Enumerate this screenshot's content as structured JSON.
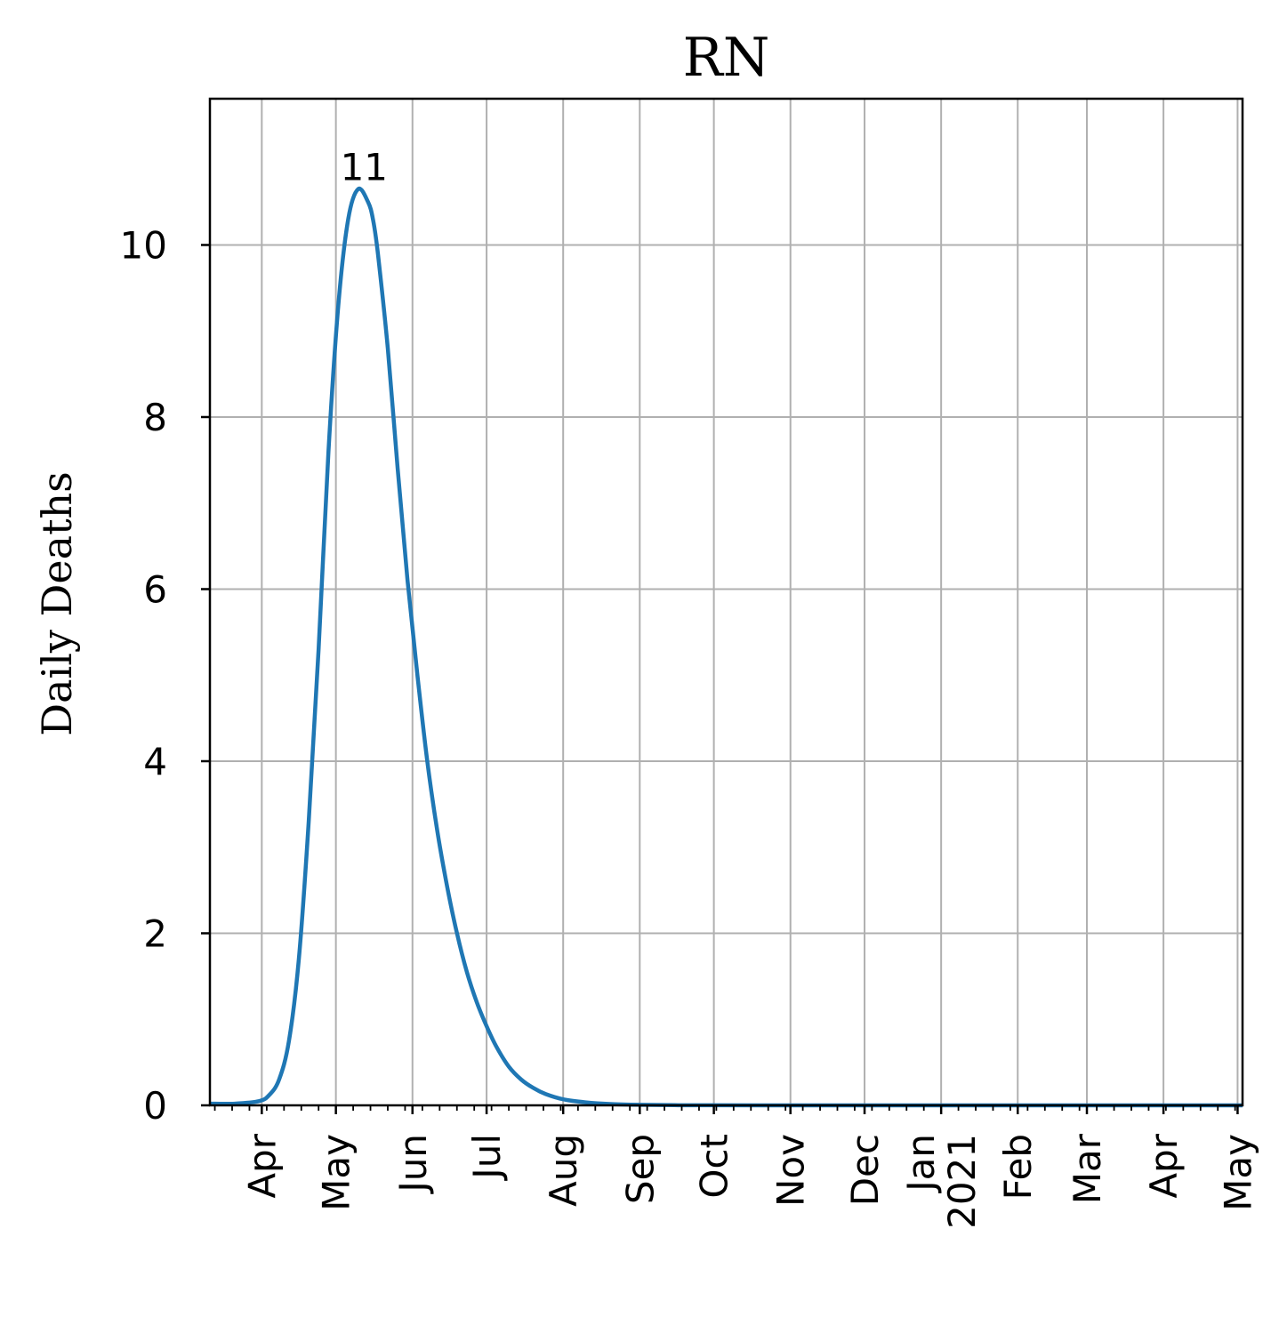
{
  "chart_data": {
    "type": "line",
    "title": "RN",
    "xlabel": "",
    "ylabel": "Daily Deaths",
    "ylim": [
      0,
      11.7
    ],
    "xlim": [
      "2020-03-11",
      "2021-05-03"
    ],
    "grid": true,
    "y_ticks": [
      0,
      2,
      4,
      6,
      8,
      10
    ],
    "x_ticks": [
      {
        "date": "2020-04-01",
        "label": "Apr"
      },
      {
        "date": "2020-05-01",
        "label": "May"
      },
      {
        "date": "2020-06-01",
        "label": "Jun"
      },
      {
        "date": "2020-07-01",
        "label": "Jul"
      },
      {
        "date": "2020-08-01",
        "label": "Aug"
      },
      {
        "date": "2020-09-01",
        "label": "Sep"
      },
      {
        "date": "2020-10-01",
        "label": "Oct"
      },
      {
        "date": "2020-11-01",
        "label": "Nov"
      },
      {
        "date": "2020-12-01",
        "label": "Dec"
      },
      {
        "date": "2021-01-01",
        "label": "Jan\n2021"
      },
      {
        "date": "2021-02-01",
        "label": "Feb"
      },
      {
        "date": "2021-03-01",
        "label": "Mar"
      },
      {
        "date": "2021-04-01",
        "label": "Apr"
      },
      {
        "date": "2021-05-01",
        "label": "May"
      }
    ],
    "series": [
      {
        "color": "#1f77b4",
        "x": [
          "2020-03-11",
          "2020-03-21",
          "2020-03-31",
          "2020-04-04",
          "2020-04-08",
          "2020-04-12",
          "2020-04-16",
          "2020-04-20",
          "2020-04-24",
          "2020-04-28",
          "2020-05-02",
          "2020-05-06",
          "2020-05-10",
          "2020-05-14",
          "2020-05-16",
          "2020-05-18",
          "2020-05-22",
          "2020-05-26",
          "2020-05-30",
          "2020-06-03",
          "2020-06-07",
          "2020-06-11",
          "2020-06-15",
          "2020-06-19",
          "2020-06-23",
          "2020-06-27",
          "2020-07-01",
          "2020-07-05",
          "2020-07-10",
          "2020-07-15",
          "2020-07-20",
          "2020-07-25",
          "2020-08-01",
          "2020-08-10",
          "2020-08-20",
          "2020-09-01",
          "2020-09-15",
          "2020-10-01",
          "2020-11-01",
          "2020-12-01",
          "2021-01-01",
          "2021-02-01",
          "2021-03-01",
          "2021-04-01",
          "2021-05-03"
        ],
        "y": [
          0.02,
          0.02,
          0.05,
          0.12,
          0.3,
          0.75,
          1.7,
          3.3,
          5.3,
          7.6,
          9.3,
          10.3,
          10.65,
          10.5,
          10.3,
          9.9,
          8.8,
          7.4,
          6.1,
          5.0,
          4.0,
          3.2,
          2.55,
          2.0,
          1.55,
          1.2,
          0.92,
          0.68,
          0.45,
          0.3,
          0.2,
          0.13,
          0.07,
          0.035,
          0.015,
          0.006,
          0.002,
          0.001,
          0,
          0,
          0,
          0,
          0,
          0,
          0
        ]
      }
    ],
    "annotations": [
      {
        "text": "11",
        "x": "2020-05-16",
        "y": 10.65
      }
    ]
  }
}
